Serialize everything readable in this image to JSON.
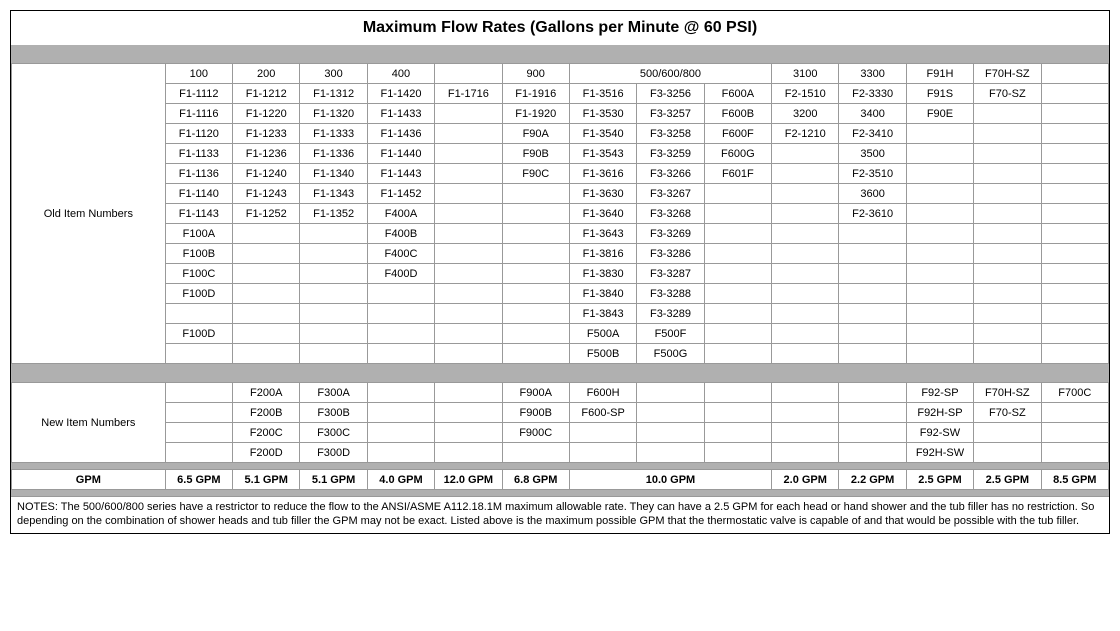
{
  "title": "Maximum Flow Rates (Gallons per Minute @ 60 PSI)",
  "labels": {
    "old": "Old Item Numbers",
    "new": "New Item Numbers",
    "gpm": "GPM"
  },
  "col_widths_pct": [
    14,
    6.14,
    6.14,
    6.14,
    6.14,
    6.14,
    6.14,
    6.14,
    6.14,
    6.14,
    6.14,
    6.14,
    6.14,
    6.14,
    6.14
  ],
  "old_section": {
    "merged_triples": [
      [
        0,
        6,
        8
      ]
    ],
    "rows": [
      [
        "100",
        "200",
        "300",
        "400",
        "",
        "900",
        "500/600/800",
        "",
        "",
        "3100",
        "3300",
        "F91H",
        "F70H-SZ",
        ""
      ],
      [
        "F1-1112",
        "F1-1212",
        "F1-1312",
        "F1-1420",
        "F1-1716",
        "F1-1916",
        "F1-3516",
        "F3-3256",
        "F600A",
        "F2-1510",
        "F2-3330",
        "F91S",
        "F70-SZ",
        ""
      ],
      [
        "F1-1116",
        "F1-1220",
        "F1-1320",
        "F1-1433",
        "",
        "F1-1920",
        "F1-3530",
        "F3-3257",
        "F600B",
        "3200",
        "3400",
        "F90E",
        "",
        ""
      ],
      [
        "F1-1120",
        "F1-1233",
        "F1-1333",
        "F1-1436",
        "",
        "F90A",
        "F1-3540",
        "F3-3258",
        "F600F",
        "F2-1210",
        "F2-3410",
        "",
        "",
        ""
      ],
      [
        "F1-1133",
        "F1-1236",
        "F1-1336",
        "F1-1440",
        "",
        "F90B",
        "F1-3543",
        "F3-3259",
        "F600G",
        "",
        "3500",
        "",
        "",
        ""
      ],
      [
        "F1-1136",
        "F1-1240",
        "F1-1340",
        "F1-1443",
        "",
        "F90C",
        "F1-3616",
        "F3-3266",
        "F601F",
        "",
        "F2-3510",
        "",
        "",
        ""
      ],
      [
        "F1-1140",
        "F1-1243",
        "F1-1343",
        "F1-1452",
        "",
        "",
        "F1-3630",
        "F3-3267",
        "",
        "",
        "3600",
        "",
        "",
        ""
      ],
      [
        "F1-1143",
        "F1-1252",
        "F1-1352",
        "F400A",
        "",
        "",
        "F1-3640",
        "F3-3268",
        "",
        "",
        "F2-3610",
        "",
        "",
        ""
      ],
      [
        "F100A",
        "",
        "",
        "F400B",
        "",
        "",
        "F1-3643",
        "F3-3269",
        "",
        "",
        "",
        "",
        "",
        ""
      ],
      [
        "F100B",
        "",
        "",
        "F400C",
        "",
        "",
        "F1-3816",
        "F3-3286",
        "",
        "",
        "",
        "",
        "",
        ""
      ],
      [
        "F100C",
        "",
        "",
        "F400D",
        "",
        "",
        "F1-3830",
        "F3-3287",
        "",
        "",
        "",
        "",
        "",
        ""
      ],
      [
        "F100D",
        "",
        "",
        "",
        "",
        "",
        "F1-3840",
        "F3-3288",
        "",
        "",
        "",
        "",
        "",
        ""
      ],
      [
        "",
        "",
        "",
        "",
        "",
        "",
        "F1-3843",
        "F3-3289",
        "",
        "",
        "",
        "",
        "",
        ""
      ],
      [
        "F100D",
        "",
        "",
        "",
        "",
        "",
        "F500A",
        "F500F",
        "",
        "",
        "",
        "",
        "",
        ""
      ],
      [
        "",
        "",
        "",
        "",
        "",
        "",
        "F500B",
        "F500G",
        "",
        "",
        "",
        "",
        "",
        ""
      ]
    ]
  },
  "new_section": {
    "rows": [
      [
        "",
        "F200A",
        "F300A",
        "",
        "",
        "F900A",
        "F600H",
        "",
        "",
        "",
        "",
        "F92-SP",
        "F70H-SZ",
        "F700C"
      ],
      [
        "",
        "F200B",
        "F300B",
        "",
        "",
        "F900B",
        "F600-SP",
        "",
        "",
        "",
        "",
        "F92H-SP",
        "F70-SZ",
        ""
      ],
      [
        "",
        "F200C",
        "F300C",
        "",
        "",
        "F900C",
        "",
        "",
        "",
        "",
        "",
        "F92-SW",
        "",
        ""
      ],
      [
        "",
        "F200D",
        "F300D",
        "",
        "",
        "",
        "",
        "",
        "",
        "",
        "",
        "F92H-SW",
        "",
        ""
      ]
    ]
  },
  "gpm_section": {
    "merged_triples": [
      [
        6,
        8
      ]
    ],
    "row": [
      "6.5 GPM",
      "5.1 GPM",
      "5.1 GPM",
      "4.0 GPM",
      "12.0 GPM",
      "6.8 GPM",
      "10.0 GPM",
      "",
      "",
      "2.0 GPM",
      "2.2 GPM",
      "2.5 GPM",
      "2.5 GPM",
      "8.5 GPM"
    ]
  },
  "notes": "NOTES: The 500/600/800 series have a restrictor to reduce the flow to the ANSI/ASME A112.18.1M maximum allowable rate. They can have a 2.5 GPM for each head or hand shower and the tub filler has no restriction. So depending on the combination of shower heads and tub filler the GPM may not be exact. Listed above is the maximum possible GPM that the thermostatic valve is capable of and that would be possible with the tub filler."
}
